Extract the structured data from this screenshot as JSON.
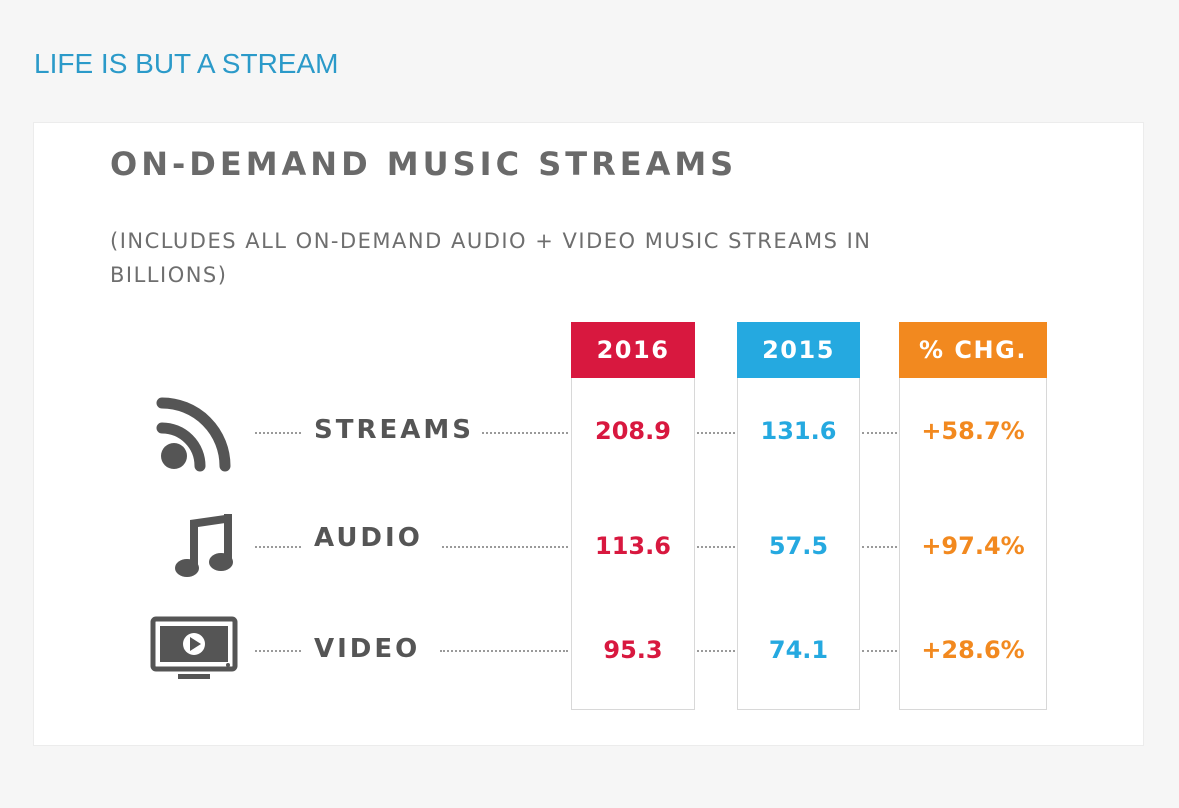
{
  "page_heading": "LIFE IS BUT A STREAM",
  "chart_data": {
    "type": "table",
    "title": "ON-DEMAND MUSIC STREAMS",
    "subtitle": "(INCLUDES ALL ON-DEMAND AUDIO + VIDEO MUSIC STREAMS IN BILLIONS)",
    "columns": [
      {
        "label": "2016",
        "color": "#d8183f"
      },
      {
        "label": "2015",
        "color": "#25a9e0"
      },
      {
        "label": "% CHG.",
        "color": "#f2891f"
      }
    ],
    "rows": [
      {
        "label": "STREAMS",
        "icon": "rss-feed-icon",
        "values": [
          "208.9",
          "131.6",
          "+58.7%"
        ]
      },
      {
        "label": "AUDIO",
        "icon": "music-note-icon",
        "values": [
          "113.6",
          "57.5",
          "+97.4%"
        ]
      },
      {
        "label": "VIDEO",
        "icon": "video-screen-icon",
        "values": [
          "95.3",
          "74.1",
          "+28.6%"
        ]
      }
    ]
  }
}
